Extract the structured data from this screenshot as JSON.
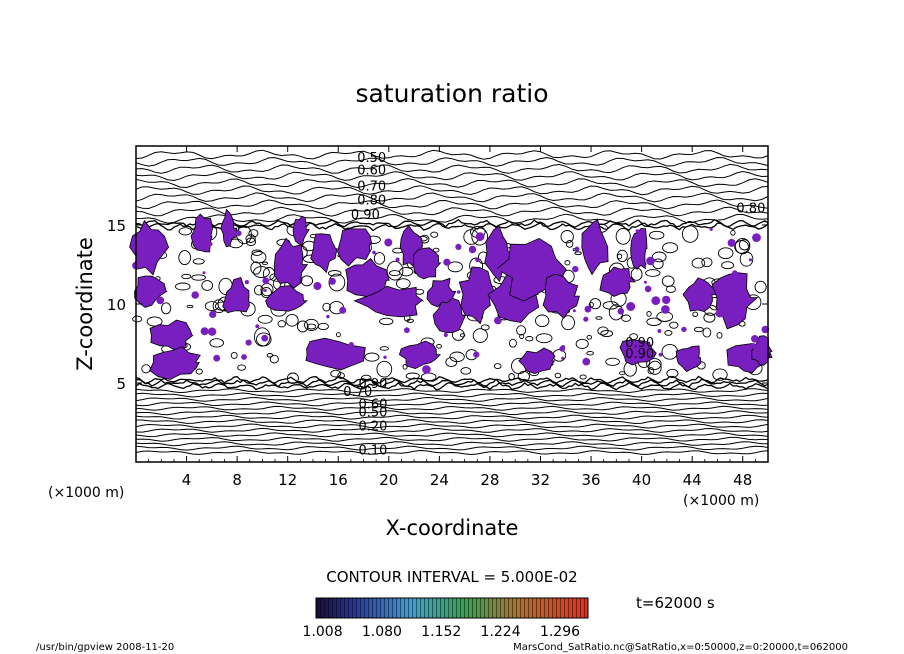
{
  "chart_data": {
    "type": "contour",
    "title": "saturation ratio",
    "xlabel": "X-coordinate",
    "ylabel": "Z-coordinate",
    "x_unit_left": "(×1000 m)",
    "x_unit_right": "(×1000 m)",
    "xlim": [
      0,
      50
    ],
    "ylim": [
      0,
      20
    ],
    "x_ticks": [
      4,
      8,
      12,
      16,
      20,
      24,
      28,
      32,
      36,
      40,
      44,
      48
    ],
    "y_ticks": [
      5,
      10,
      15
    ],
    "contour_interval_text": "CONTOUR INTERVAL = 5.000E-02",
    "contour_levels": [
      {
        "label": "0.50",
        "x": 17.5,
        "z": 19.3
      },
      {
        "label": "0.60",
        "x": 17.5,
        "z": 18.5
      },
      {
        "label": "0.70",
        "x": 17.5,
        "z": 17.5
      },
      {
        "label": "0.80",
        "x": 17.5,
        "z": 16.6
      },
      {
        "label": "0.90",
        "x": 17.0,
        "z": 15.7
      },
      {
        "label": "0.80",
        "x": 47.5,
        "z": 16.1
      },
      {
        "label": "0.90",
        "x": 38.7,
        "z": 7.6
      },
      {
        "label": "0.90",
        "x": 38.7,
        "z": 6.9
      },
      {
        "label": "0.90",
        "x": 17.6,
        "z": 5.0
      },
      {
        "label": "0.70",
        "x": 16.4,
        "z": 4.5
      },
      {
        "label": "0.60",
        "x": 17.6,
        "z": 3.7
      },
      {
        "label": "0.50",
        "x": 17.6,
        "z": 3.2
      },
      {
        "label": "0.20",
        "x": 17.6,
        "z": 2.3
      },
      {
        "label": "0.10",
        "x": 17.6,
        "z": 0.8
      }
    ],
    "shaded_regions_desc": "supersaturated (>1.0) regions shaded purple",
    "colorbar_ticks": [
      "1.008",
      "1.080",
      "1.152",
      "1.224",
      "1.296"
    ],
    "colorbar_range": [
      1.0,
      1.33
    ],
    "time_label": "t=62000 s",
    "fill_color": "#7a1fbf"
  },
  "footer": {
    "left": "/usr/bin/gpview   2008-11-20",
    "right": "MarsCond_SatRatio.nc@SatRatio,x=0:50000,z=0:20000,t=062000"
  }
}
